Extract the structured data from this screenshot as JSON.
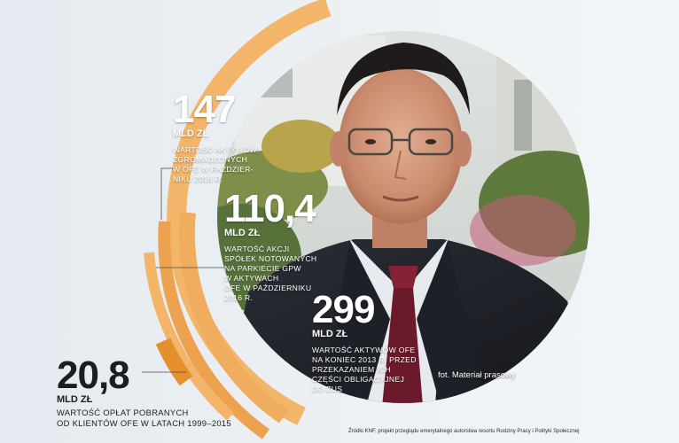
{
  "stats": [
    {
      "value": "147",
      "unit": "MLD ZŁ",
      "lines": [
        "WARTOŚĆ AKTYWÓW",
        "ZGROMADZONYCH",
        "W OFE W PAŹDZIER-",
        "NIKU 2016 R."
      ]
    },
    {
      "value": "110,4",
      "unit": "MLD ZŁ",
      "lines": [
        "WARTOŚĆ AKCJI",
        "SPÓŁEK NOTOWANYCH",
        "NA PARKIECIE GPW",
        "W AKTYWACH",
        "OFE W PAŹDZIERNIKU",
        "2016 R."
      ]
    },
    {
      "value": "299",
      "unit": "MLD ZŁ",
      "lines": [
        "WARTOŚĆ AKTYWÓW OFE",
        "NA KONIEC 2013 R. PRZED",
        "PRZEKAZANIEM ICH",
        "CZĘŚCI OBLIGACYJNEJ",
        "DO ZUS"
      ]
    },
    {
      "value": "20,8",
      "unit": "MLD ZŁ",
      "lines": [
        "WARTOŚĆ OPŁAT POBRANYCH",
        "OD KLIENTÓW OFE W LATACH 1999–2015"
      ]
    }
  ],
  "photo_credit": "fot. Materiał prasowy",
  "source_note": "Źródło KNF, projekt przeglądu emerytalnego autorstwa resortu Rodziny Pracy i Polityki Społecznej",
  "colors": {
    "arc_light": "#f2b56a",
    "arc_mid": "#eda24f",
    "arc_dark": "#e58f2d",
    "text_dark": "#1b1d22",
    "background": "#e8edf1"
  }
}
